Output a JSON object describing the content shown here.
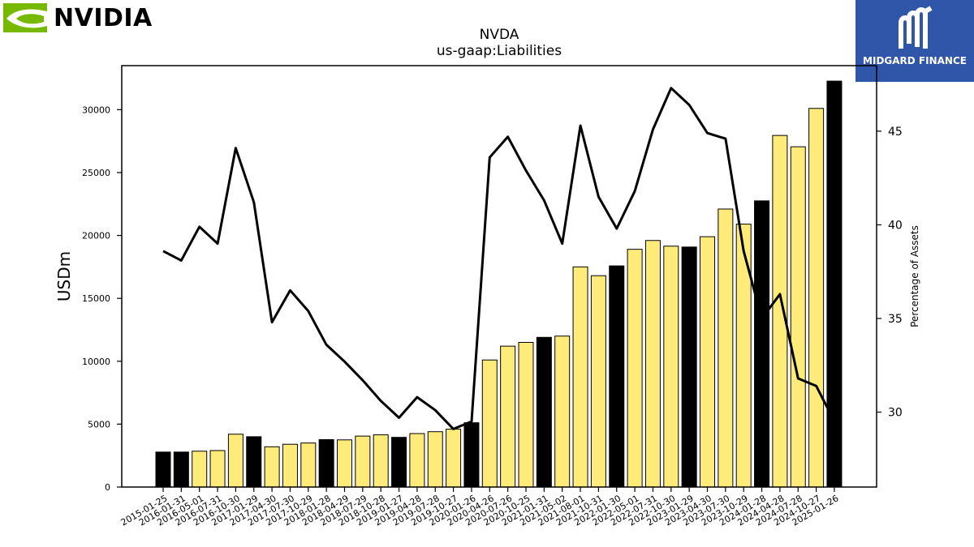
{
  "branding": {
    "left_logo": "NVIDIA",
    "left_logo_icon": "nvidia-eye-icon",
    "right_logo": "MIDGARD FINANCE",
    "right_logo_icon": "midgard-m-icon",
    "brand_green": "#76b900",
    "brand_blue": "#2f56a8"
  },
  "chart_data": {
    "type": "bar",
    "title": "NVDA",
    "subtitle": "us-gaap:Liabilities",
    "xlabel": "",
    "ylabel": "USDm",
    "y2label": "Percentage of Assets",
    "ylim": [
      0,
      33500
    ],
    "y2lim": [
      26,
      48.5
    ],
    "yticks": [
      0,
      5000,
      10000,
      15000,
      20000,
      25000,
      30000
    ],
    "y2ticks": [
      30,
      35,
      40,
      45
    ],
    "grid": false,
    "colors": {
      "annual": "#000000",
      "quarterly": "#ffeb7a",
      "line": "#000000"
    },
    "categories": [
      "2015-01-25",
      "2016-01-31",
      "2016-05-01",
      "2016-07-31",
      "2016-10-30",
      "2017-01-29",
      "2017-04-30",
      "2017-07-30",
      "2017-10-29",
      "2018-01-28",
      "2018-04-29",
      "2018-07-29",
      "2018-10-28",
      "2019-01-27",
      "2019-04-28",
      "2019-07-28",
      "2019-10-27",
      "2020-01-26",
      "2020-04-26",
      "2020-07-26",
      "2020-10-25",
      "2021-01-31",
      "2021-05-02",
      "2021-08-01",
      "2021-10-31",
      "2022-01-30",
      "2022-05-01",
      "2022-07-31",
      "2022-10-30",
      "2023-01-29",
      "2023-04-30",
      "2023-07-30",
      "2023-10-29",
      "2024-01-28",
      "2024-04-28",
      "2024-07-28",
      "2024-10-27",
      "2025-01-26"
    ],
    "series": [
      {
        "kind": "bar",
        "values": [
          2780,
          2780,
          2850,
          2900,
          4200,
          4000,
          3200,
          3400,
          3500,
          3770,
          3750,
          4050,
          4150,
          3950,
          4250,
          4400,
          4600,
          5110,
          10100,
          11200,
          11500,
          11900,
          12000,
          17500,
          16800,
          17580,
          18900,
          19600,
          19150,
          19080,
          19900,
          22100,
          20900,
          22750,
          27950,
          27050,
          30100,
          32270
        ],
        "annual": [
          true,
          true,
          false,
          false,
          false,
          true,
          false,
          false,
          false,
          true,
          false,
          false,
          false,
          true,
          false,
          false,
          false,
          true,
          false,
          false,
          false,
          true,
          false,
          false,
          false,
          true,
          false,
          false,
          false,
          true,
          false,
          false,
          false,
          true,
          false,
          false,
          false,
          true
        ]
      },
      {
        "kind": "line",
        "axis": "right",
        "values": [
          38.6,
          38.1,
          39.9,
          39.0,
          44.1,
          41.2,
          34.8,
          36.5,
          35.4,
          33.6,
          32.7,
          31.7,
          30.6,
          29.7,
          30.8,
          30.1,
          29.1,
          29.5,
          43.6,
          44.7,
          42.9,
          41.3,
          39.0,
          45.3,
          41.5,
          39.8,
          41.8,
          45.1,
          47.3,
          46.4,
          44.9,
          44.6,
          38.6,
          35.0,
          36.3,
          31.8,
          31.4,
          29.5
        ]
      }
    ]
  }
}
